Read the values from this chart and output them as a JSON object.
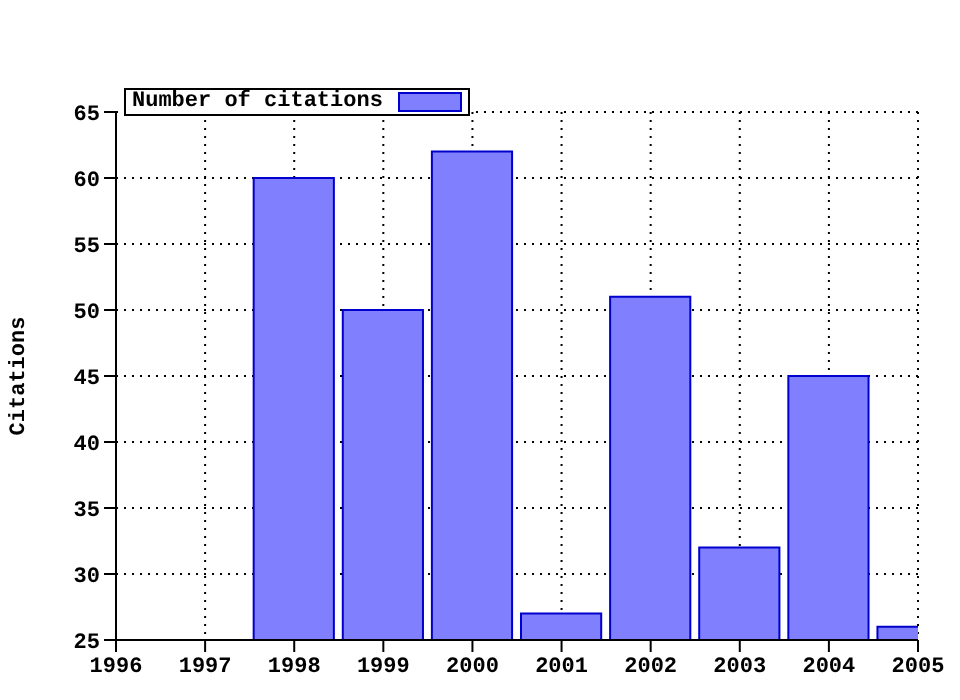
{
  "chart_data": {
    "type": "bar",
    "ylabel": "Citations",
    "x": [
      1998,
      1999,
      2000,
      2001,
      2002,
      2003,
      2004,
      2005
    ],
    "series": [
      {
        "name": "Number of citations",
        "color": "#8080ff",
        "values": [
          60,
          50,
          62,
          27,
          51,
          32,
          45,
          26
        ]
      }
    ],
    "xlim": [
      1996,
      2005
    ],
    "xticks": [
      1996,
      1997,
      1998,
      1999,
      2000,
      2001,
      2002,
      2003,
      2004,
      2005
    ],
    "ylim": [
      25,
      65
    ],
    "yticks": [
      25,
      30,
      35,
      40,
      45,
      50,
      55,
      60,
      65
    ],
    "grid": true,
    "legend": "top left"
  }
}
